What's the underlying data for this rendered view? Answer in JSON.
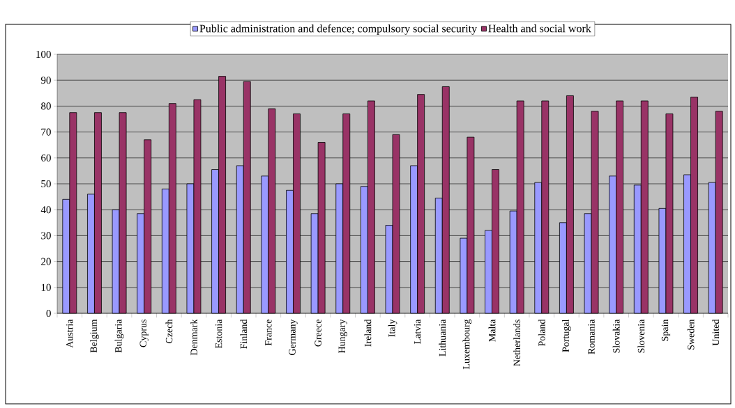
{
  "chart_data": {
    "type": "bar",
    "categories": [
      "Austria",
      "Belgium",
      "Bulgaria",
      "Cyprus",
      "Czech",
      "Denmark",
      "Estonia",
      "Finland",
      "France",
      "Germany",
      "Greece",
      "Hungary",
      "Ireland",
      "Italy",
      "Latvia",
      "Lithuania",
      "Luxembourg",
      "Malta",
      "Netherlands",
      "Poland",
      "Portugal",
      "Romania",
      "Slovakia",
      "Slovenia",
      "Spain",
      "Sweden",
      "United"
    ],
    "series": [
      {
        "name": "Public administration and defence; compulsory social security",
        "color": "#9999ff",
        "values": [
          44,
          46,
          40,
          38.5,
          48,
          50,
          55.5,
          57,
          53,
          47.5,
          38.5,
          50,
          49,
          34,
          57,
          44.5,
          29,
          32,
          39.5,
          50.5,
          35,
          38.5,
          53,
          49.5,
          40.5,
          53.5,
          50.5
        ]
      },
      {
        "name": "Health and social work",
        "color": "#993366",
        "values": [
          77.5,
          77.5,
          77.5,
          67,
          81,
          82.5,
          91.5,
          89.5,
          79,
          77,
          66,
          77,
          82,
          69,
          84.5,
          87.5,
          68,
          55.5,
          82,
          82,
          84,
          78,
          82,
          82,
          77,
          83.5,
          78
        ]
      }
    ],
    "ylim": [
      0,
      100
    ],
    "yticks": [
      0,
      10,
      20,
      30,
      40,
      50,
      60,
      70,
      80,
      90,
      100
    ],
    "grid": "y",
    "legend": "top"
  }
}
